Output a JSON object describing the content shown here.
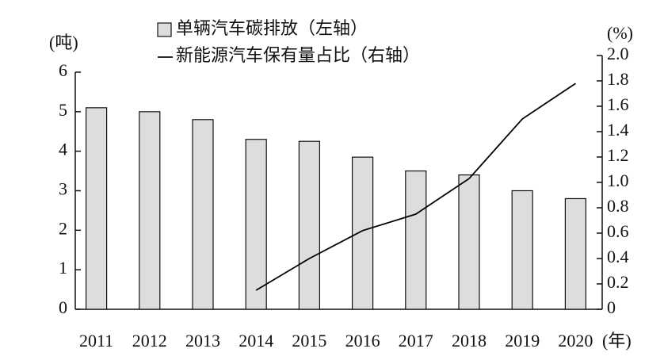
{
  "chart_data": {
    "type": "bar-line",
    "categories": [
      "2011",
      "2012",
      "2013",
      "2014",
      "2015",
      "2016",
      "2017",
      "2018",
      "2019",
      "2020"
    ],
    "x_unit": "(年)",
    "y_unit": "(吨)",
    "y2_unit": "(%)",
    "series": [
      {
        "name": "单辆汽车碳排放（左轴）",
        "type": "bar",
        "color": "#dddddd",
        "values": [
          5.1,
          5.0,
          4.8,
          4.3,
          4.25,
          3.85,
          3.5,
          3.4,
          3.0,
          2.8
        ]
      },
      {
        "name": "新能源汽车保有量占比（右轴）",
        "type": "line",
        "axis": "y2",
        "color": "#000000",
        "values": [
          null,
          null,
          null,
          0.15,
          0.4,
          0.62,
          0.75,
          1.03,
          1.5,
          1.78
        ]
      }
    ],
    "ylim": [
      0,
      6
    ],
    "yticks": [
      0,
      1,
      2,
      3,
      4,
      5,
      6
    ],
    "y2lim": [
      0,
      2
    ],
    "y2ticks": [
      0,
      0.2,
      0.4,
      0.6,
      0.8,
      {
        "value": 1,
        "label": "1.0"
      },
      1.2,
      1.4,
      1.6,
      1.8,
      {
        "value": 2,
        "label": "2.0"
      }
    ]
  }
}
